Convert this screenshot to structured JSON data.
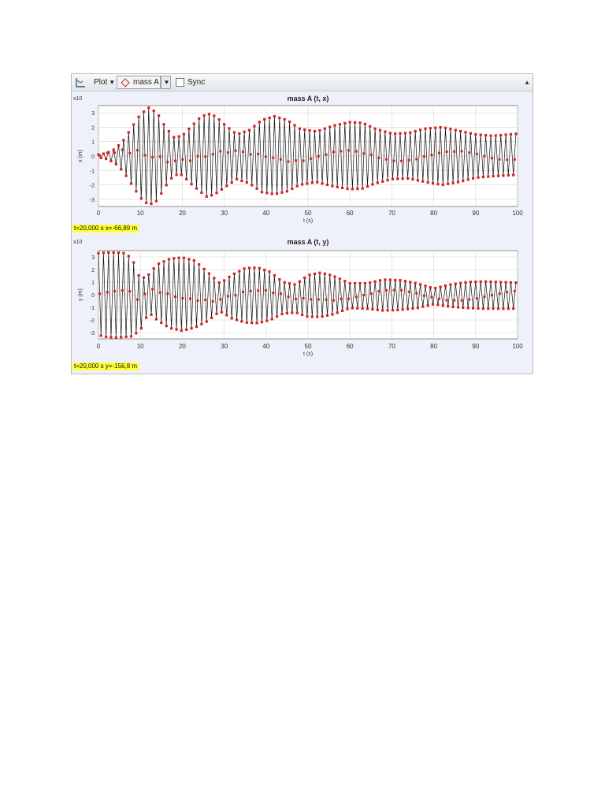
{
  "toolbar": {
    "plot_label": "Plot",
    "dataset_label": "mass A",
    "sync_label": "Sync",
    "icons": {
      "plot": "plot-axes-icon",
      "dataset": "red-diamond-icon",
      "dropdown": "chevron-down-icon",
      "collapse": "triangle-up-icon"
    },
    "sync_checked": false
  },
  "readouts": {
    "x": "t=20,000 s  x=-66,89 m",
    "y": "t=20,000 s  y=-156,8 m"
  },
  "colors": {
    "marker": "#d42020",
    "line": "#111111",
    "plot_bg": "#ffffff",
    "panel_bg": "#eef1f9",
    "highlight": "#ffff33"
  },
  "chart_data": [
    {
      "type": "line",
      "title": "mass A (t, x)",
      "xlabel": "t (s)",
      "ylabel": "x (m)",
      "y_multiplier": "x10",
      "y_multiplier_exp": "2",
      "xlim": [
        0,
        100
      ],
      "ylim": [
        -3.5,
        3.5
      ],
      "xticks": [
        0,
        10,
        20,
        30,
        40,
        50,
        60,
        70,
        80,
        90,
        100
      ],
      "yticks": [
        -3,
        -2,
        -1,
        0,
        1,
        2,
        3
      ],
      "grid": true,
      "series": [
        {
          "envelope_t": [
            0,
            2,
            4,
            6,
            8,
            10,
            12,
            14,
            16,
            18,
            20,
            22,
            24,
            26,
            28,
            30,
            33,
            36,
            39,
            42,
            45,
            48,
            52,
            56,
            60,
            63,
            66,
            70,
            74,
            78,
            82,
            86,
            90,
            94,
            100
          ],
          "upper": [
            0.1,
            0.2,
            0.5,
            1.1,
            2.0,
            2.9,
            3.35,
            3.0,
            2.0,
            1.3,
            1.4,
            2.0,
            2.6,
            2.95,
            2.75,
            2.2,
            1.5,
            1.8,
            2.5,
            2.75,
            2.5,
            1.9,
            1.7,
            2.1,
            2.35,
            2.3,
            1.9,
            1.55,
            1.6,
            1.9,
            2.0,
            1.75,
            1.5,
            1.4,
            1.55
          ],
          "lower": [
            -0.1,
            -0.2,
            -0.5,
            -1.1,
            -2.0,
            -2.9,
            -3.4,
            -3.1,
            -2.1,
            -1.3,
            -1.3,
            -1.9,
            -2.4,
            -2.85,
            -2.6,
            -2.2,
            -1.6,
            -1.9,
            -2.5,
            -2.65,
            -2.45,
            -2.0,
            -1.8,
            -2.1,
            -2.3,
            -2.25,
            -1.9,
            -1.6,
            -1.55,
            -1.8,
            -2.0,
            -1.8,
            -1.5,
            -1.4,
            -1.3
          ],
          "oscillation_period": 1.2
        }
      ]
    },
    {
      "type": "line",
      "title": "mass A (t, y)",
      "xlabel": "t (s)",
      "ylabel": "y (m)",
      "y_multiplier": "x10",
      "y_multiplier_exp": "2",
      "xlim": [
        0,
        100
      ],
      "ylim": [
        -3.5,
        3.5
      ],
      "xticks": [
        0,
        10,
        20,
        30,
        40,
        50,
        60,
        70,
        80,
        90,
        100
      ],
      "yticks": [
        -3,
        -2,
        -1,
        0,
        1,
        2,
        3
      ],
      "grid": true,
      "series": [
        {
          "envelope_t": [
            0,
            2,
            4,
            6,
            8,
            10,
            12,
            14,
            17,
            20,
            23,
            26,
            29,
            32,
            35,
            38,
            41,
            44,
            47,
            50,
            53,
            56,
            60,
            64,
            68,
            72,
            76,
            80,
            84,
            88,
            92,
            96,
            100
          ],
          "upper": [
            3.3,
            3.35,
            3.35,
            3.3,
            2.9,
            1.2,
            1.6,
            2.4,
            2.85,
            2.95,
            2.7,
            1.8,
            0.9,
            1.6,
            2.1,
            2.15,
            1.8,
            1.0,
            0.8,
            1.55,
            1.75,
            1.5,
            0.9,
            0.9,
            1.2,
            1.15,
            0.9,
            0.5,
            0.8,
            1.0,
            1.05,
            1.0,
            0.95
          ],
          "lower": [
            -3.2,
            -3.35,
            -3.4,
            -3.35,
            -3.3,
            -2.8,
            -1.4,
            -2.0,
            -2.65,
            -2.85,
            -2.6,
            -2.1,
            -1.3,
            -1.9,
            -2.2,
            -2.25,
            -2.0,
            -1.5,
            -1.4,
            -1.75,
            -1.75,
            -1.55,
            -1.05,
            -1.1,
            -1.25,
            -1.2,
            -1.05,
            -0.75,
            -0.95,
            -1.05,
            -1.1,
            -1.1,
            -1.1
          ],
          "oscillation_period": 1.2
        }
      ]
    }
  ]
}
